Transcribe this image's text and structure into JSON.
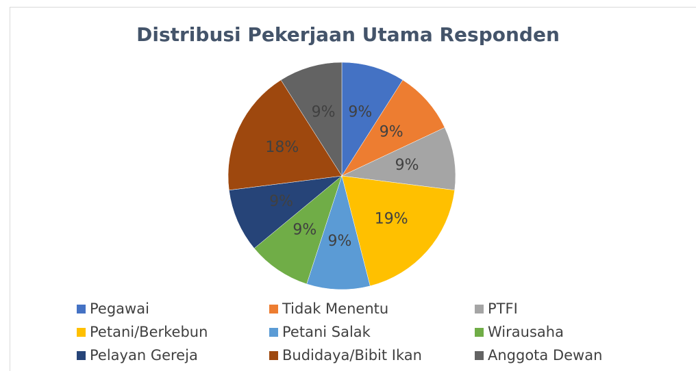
{
  "chart_data": {
    "type": "pie",
    "title": "Distribusi Pekerjaan Utama Responden",
    "categories": [
      "Pegawai",
      "Tidak Menentu",
      "PTFI",
      "Petani/Berkebun",
      "Petani Salak",
      "Wirausaha",
      "Pelayan Gereja",
      "Budidaya/Bibit Ikan",
      "Anggota Dewan"
    ],
    "values": [
      9,
      9,
      9,
      19,
      9,
      9,
      9,
      18,
      9
    ],
    "value_labels": [
      "9%",
      "9%",
      "9%",
      "19%",
      "9%",
      "9%",
      "9%",
      "18%",
      "9%"
    ],
    "colors": [
      "#4472c4",
      "#ed7d31",
      "#a5a5a5",
      "#ffc000",
      "#5b9bd5",
      "#70ad47",
      "#264478",
      "#9e480e",
      "#636363"
    ],
    "legend": "bottom"
  }
}
